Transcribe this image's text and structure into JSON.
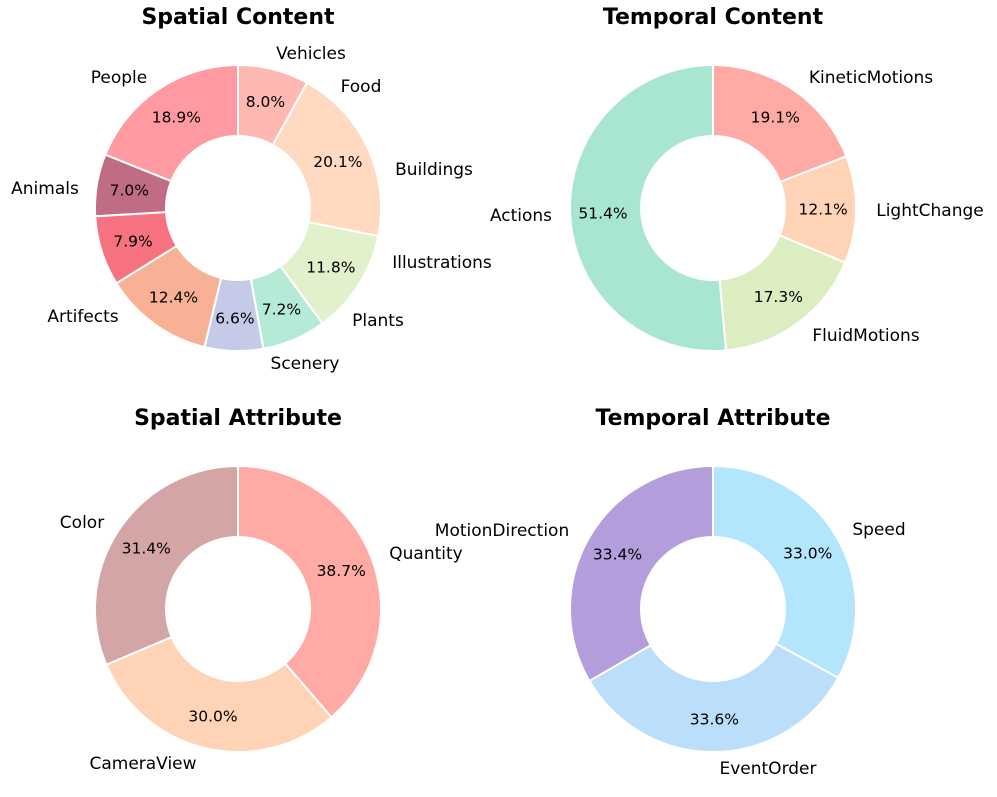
{
  "chart_data": [
    {
      "type": "pie",
      "title": "Spatial Content",
      "categories": [
        "People",
        "Vehicles",
        "Food",
        "Buildings",
        "Illustrations",
        "Plants",
        "Scenery",
        "Artifects",
        "Animals"
      ],
      "values": [
        18.9,
        7.0,
        7.9,
        12.4,
        6.6,
        7.2,
        11.8,
        20.1,
        8.0
      ],
      "labels_pct": [
        "18.9%",
        "7.0%",
        "7.9%",
        "12.4%",
        "6.6%",
        "7.2%",
        "11.8%",
        "20.1%",
        "8.0%"
      ],
      "colors": [
        "#ff9aa2",
        "#c06c84",
        "#f67280",
        "#f8b195",
        "#c5cae9",
        "#b5ead7",
        "#e2f0cb",
        "#ffdac1",
        "#ffb7b2"
      ],
      "donut": true,
      "start_angle_deg": 90,
      "direction": "counterclockwise"
    },
    {
      "type": "pie",
      "title": "Temporal Content",
      "categories": [
        "KineticMotions",
        "LightChange",
        "FluidMotions",
        "Actions"
      ],
      "values": [
        19.1,
        12.1,
        17.3,
        51.4
      ],
      "labels_pct": [
        "19.1%",
        "12.1%",
        "17.3%",
        "51.4%"
      ],
      "colors": [
        "#ffaaa5",
        "#ffd3b6",
        "#dcedc1",
        "#a8e6cf"
      ],
      "donut": true,
      "start_angle_deg": 90,
      "direction": "clockwise"
    },
    {
      "type": "pie",
      "title": "Spatial Attribute",
      "categories": [
        "Quantity",
        "CameraView",
        "Color"
      ],
      "values": [
        38.7,
        30.0,
        31.4
      ],
      "labels_pct": [
        "38.7%",
        "30.0%",
        "31.4%"
      ],
      "colors": [
        "#ffaaa5",
        "#ffd3b6",
        "#d4a5a5"
      ],
      "donut": true,
      "start_angle_deg": 90,
      "direction": "clockwise"
    },
    {
      "type": "pie",
      "title": "Temporal Attribute",
      "categories": [
        "Speed",
        "EventOrder",
        "MotionDirection"
      ],
      "values": [
        33.0,
        33.6,
        33.4
      ],
      "labels_pct": [
        "33.0%",
        "33.6%",
        "33.4%"
      ],
      "colors": [
        "#b3e5fc",
        "#bbdefb",
        "#b39ddb"
      ],
      "donut": true,
      "start_angle_deg": 90,
      "direction": "clockwise"
    }
  ]
}
